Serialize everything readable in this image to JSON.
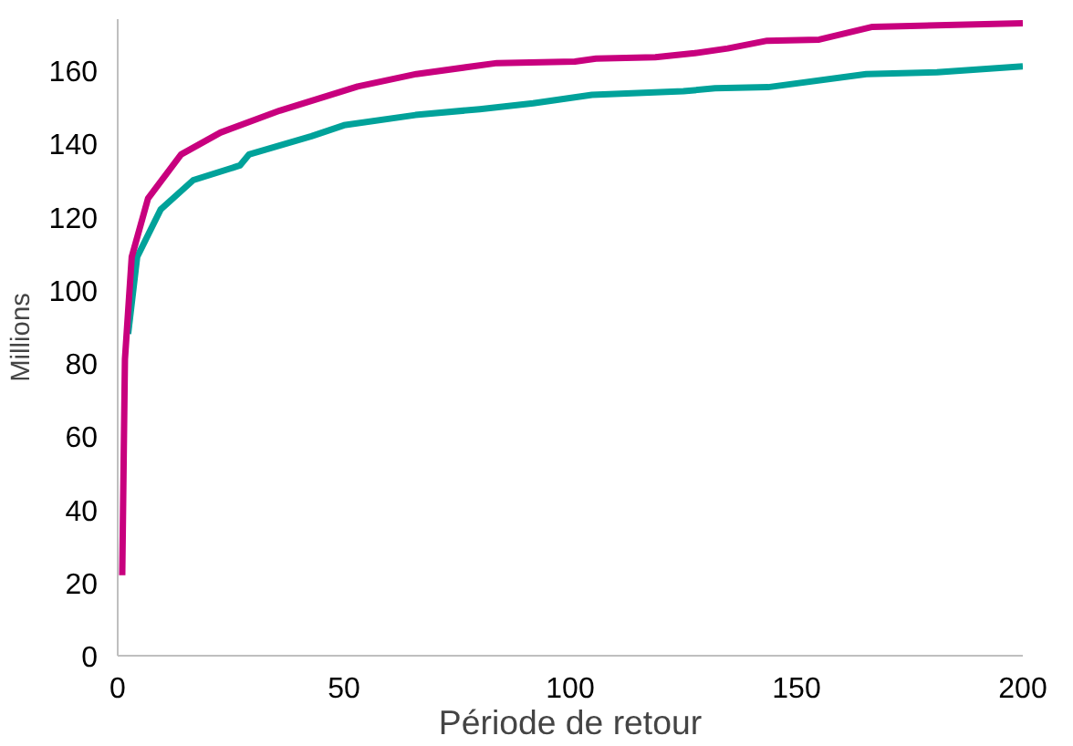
{
  "chart_data": {
    "type": "line",
    "xlabel": "Période de retour",
    "ylabel": "Millions",
    "xlim": [
      0,
      200
    ],
    "ylim": [
      0,
      174
    ],
    "xticks": [
      0,
      50,
      100,
      150,
      200
    ],
    "yticks": [
      0,
      20,
      40,
      60,
      80,
      100,
      120,
      140,
      160
    ],
    "grid": false,
    "marker": "none",
    "line_style": "solid",
    "series": [
      {
        "color": "#c8007e",
        "x": [
          1,
          1.6,
          3.1,
          6.7,
          14,
          22.7,
          35.8,
          53,
          66,
          83.8,
          101,
          105.7,
          118.8,
          127.5,
          134.8,
          143.5,
          155,
          166.8,
          200
        ],
        "values": [
          22,
          81,
          109,
          125,
          137,
          143,
          149,
          155.6,
          159,
          162,
          162.4,
          163.2,
          163.6,
          164.7,
          166,
          168.1,
          168.4,
          171.9,
          172.9
        ]
      },
      {
        "color": "#00a29a",
        "x": [
          2.3,
          4.3,
          9.5,
          16.7,
          27,
          29,
          42.8,
          50,
          65.8,
          80,
          91.8,
          104.8,
          125,
          132,
          143.7,
          165.4,
          181,
          200
        ],
        "values": [
          88,
          109,
          122,
          130,
          134,
          137,
          142,
          145,
          147.8,
          149.4,
          151,
          153.3,
          154.3,
          155.1,
          155.4,
          159,
          159.5,
          161.1
        ]
      }
    ]
  }
}
